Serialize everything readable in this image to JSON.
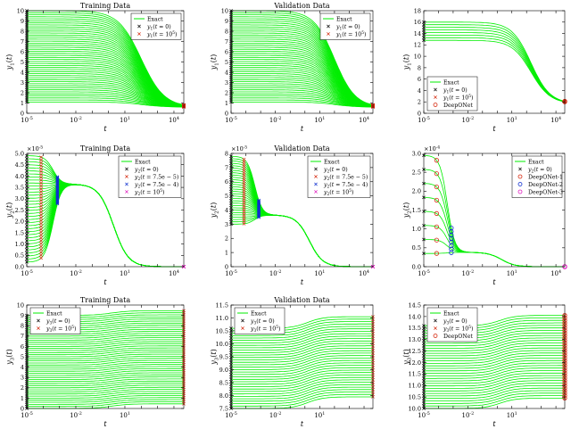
{
  "figure": {
    "background": "#ffffff",
    "curve_color": "#00ee00",
    "axis_color": "#000000"
  },
  "chart_data": [
    {
      "id": "p11",
      "type": "line",
      "title": "Training Data",
      "xlabel": "t",
      "ylabel": "y1(t)",
      "xscale": "log",
      "xlim": [
        1e-05,
        40000
      ],
      "ylim": [
        0,
        10
      ],
      "xticks": [
        {
          "v": 1e-05,
          "label": "10^-5"
        },
        {
          "v": 0.01,
          "label": "10^-2"
        },
        {
          "v": 10,
          "label": "10^1"
        },
        {
          "v": 10000,
          "label": "10^4"
        }
      ],
      "yticks": [
        0,
        1,
        2,
        3,
        4,
        5,
        6,
        7,
        8,
        9,
        10
      ],
      "ytick_decimals": 0,
      "yexp": "",
      "curves": {
        "kind": "sigmoid",
        "n": 46,
        "y0_range": [
          1.1,
          10.0
        ],
        "y_end": 0.6,
        "t_mid": 100,
        "width": 1.4
      },
      "markers": [
        {
          "at": "start",
          "style": "x",
          "color": "#000000"
        },
        {
          "at": "end",
          "style": "x",
          "color": "#d62a10"
        }
      ],
      "legend": {
        "position": "top-right",
        "entries": [
          {
            "label": "Exact",
            "style": "line",
            "color": "#00ee00"
          },
          {
            "label": "y1(t = 0)",
            "style": "x",
            "color": "#000000"
          },
          {
            "label": "y1(t = 10^5)",
            "style": "x",
            "color": "#d62a10"
          }
        ]
      }
    },
    {
      "id": "p12",
      "type": "line",
      "title": "Validation Data",
      "xlabel": "t",
      "ylabel": "y1(t)",
      "xscale": "log",
      "xlim": [
        1e-05,
        40000
      ],
      "ylim": [
        0,
        10
      ],
      "xticks": [
        {
          "v": 1e-05,
          "label": "10^-5"
        },
        {
          "v": 0.01,
          "label": "10^-2"
        },
        {
          "v": 10,
          "label": "10^1"
        },
        {
          "v": 10000,
          "label": "10^4"
        }
      ],
      "yticks": [
        0,
        1,
        2,
        3,
        4,
        5,
        6,
        7,
        8,
        9,
        10
      ],
      "ytick_decimals": 0,
      "yexp": "",
      "curves": {
        "kind": "sigmoid",
        "n": 46,
        "y0_range": [
          1.1,
          10.0
        ],
        "y_end": 0.6,
        "t_mid": 100,
        "width": 1.4
      },
      "markers": [
        {
          "at": "start",
          "style": "x",
          "color": "#000000"
        },
        {
          "at": "end",
          "style": "x",
          "color": "#d62a10"
        }
      ],
      "legend": {
        "position": "top-right",
        "entries": [
          {
            "label": "Exact",
            "style": "line",
            "color": "#00ee00"
          },
          {
            "label": "y1(t = 0)",
            "style": "x",
            "color": "#000000"
          },
          {
            "label": "y1(t = 10^5)",
            "style": "x",
            "color": "#d62a10"
          }
        ]
      }
    },
    {
      "id": "p13",
      "type": "line",
      "title": "",
      "xlabel": "t",
      "ylabel": "y1(t)",
      "xscale": "log",
      "xlim": [
        1e-05,
        40000
      ],
      "ylim": [
        0,
        18
      ],
      "xticks": [
        {
          "v": 1e-05,
          "label": "10^-5"
        },
        {
          "v": 0.01,
          "label": "10^-2"
        },
        {
          "v": 10,
          "label": "10^1"
        },
        {
          "v": 10000,
          "label": "10^4"
        }
      ],
      "yticks": [
        0,
        2,
        4,
        6,
        8,
        10,
        12,
        14,
        16,
        18
      ],
      "ytick_decimals": 0,
      "yexp": "",
      "curves": {
        "kind": "sigmoid",
        "n": 8,
        "y0_range": [
          12.8,
          16.0
        ],
        "y_end": 1.7,
        "t_mid": 200,
        "width": 1.3
      },
      "markers": [
        {
          "at": "start",
          "style": "x",
          "color": "#000000"
        },
        {
          "at": "end",
          "style": "x",
          "color": "#d62a10"
        },
        {
          "at": "end",
          "style": "o",
          "color": "#d62a10"
        }
      ],
      "legend": {
        "position": "bottom-left",
        "entries": [
          {
            "label": "Exact",
            "style": "line",
            "color": "#00ee00"
          },
          {
            "label": "y1(t = 0)",
            "style": "x",
            "color": "#000000"
          },
          {
            "label": "y1(t = 10^5)",
            "style": "x",
            "color": "#d62a10"
          },
          {
            "label": "DeepONet",
            "style": "o",
            "color": "#d62a10"
          }
        ]
      }
    },
    {
      "id": "p21",
      "type": "line",
      "title": "Training Data",
      "xlabel": "t",
      "ylabel": "y2(t)",
      "xscale": "log",
      "xlim": [
        1e-05,
        40000
      ],
      "ylim": [
        0,
        5e-05
      ],
      "xticks": [
        {
          "v": 1e-05,
          "label": "10^-5"
        },
        {
          "v": 0.01,
          "label": "10^-2"
        },
        {
          "v": 10,
          "label": "10^1"
        },
        {
          "v": 10000,
          "label": "10^4"
        }
      ],
      "yticks": [
        0,
        5e-06,
        1e-05,
        1.5e-05,
        2e-05,
        2.5e-05,
        3e-05,
        3.5e-05,
        4e-05,
        4.5e-05,
        5e-05
      ],
      "ytick_decimals": 1,
      "yexp": "-5",
      "curves": {
        "kind": "y2",
        "n": 36,
        "y0_range": [
          2e-06,
          4.9e-05
        ],
        "plateau": 3.65e-05,
        "t_conv": 0.0004,
        "t_mid": 2,
        "width": 0.9
      },
      "markers": [
        {
          "at": "start",
          "style": "x",
          "color": "#000000"
        },
        {
          "at": 7.5e-05,
          "style": "x",
          "color": "#d62a10"
        },
        {
          "at": 0.00075,
          "style": "x",
          "color": "#1030d0"
        },
        {
          "at": "end",
          "style": "x",
          "color": "#e020c0"
        }
      ],
      "legend": {
        "position": "top-right",
        "entries": [
          {
            "label": "Exact",
            "style": "line",
            "color": "#00ee00"
          },
          {
            "label": "y2(t = 0)",
            "style": "x",
            "color": "#000000"
          },
          {
            "label": "y2(t = 7.5e − 5)",
            "style": "x",
            "color": "#d62a10"
          },
          {
            "label": "y2(t = 7.5e − 4)",
            "style": "x",
            "color": "#1030d0"
          },
          {
            "label": "y2(t = 10^5)",
            "style": "x",
            "color": "#e020c0"
          }
        ]
      }
    },
    {
      "id": "p22",
      "type": "line",
      "title": "Validation Data",
      "xlabel": "t",
      "ylabel": "y2(t)",
      "xscale": "log",
      "xlim": [
        1e-05,
        40000
      ],
      "ylim": [
        0,
        8e-05
      ],
      "xticks": [
        {
          "v": 1e-05,
          "label": "10^-5"
        },
        {
          "v": 0.01,
          "label": "10^-2"
        },
        {
          "v": 10,
          "label": "10^1"
        },
        {
          "v": 10000,
          "label": "10^4"
        }
      ],
      "yticks": [
        0,
        1e-05,
        2e-05,
        3e-05,
        4e-05,
        5e-05,
        6e-05,
        7e-05,
        8e-05
      ],
      "ytick_decimals": 0,
      "yexp": "-5",
      "curves": {
        "kind": "y2",
        "n": 30,
        "y0_range": [
          3e-05,
          7.8e-05
        ],
        "plateau": 3.65e-05,
        "t_conv": 0.0004,
        "t_mid": 2,
        "width": 0.9
      },
      "markers": [
        {
          "at": "start",
          "style": "x",
          "color": "#000000"
        },
        {
          "at": 7.5e-05,
          "style": "x",
          "color": "#d62a10"
        },
        {
          "at": 0.00075,
          "style": "x",
          "color": "#1030d0"
        },
        {
          "at": "end",
          "style": "x",
          "color": "#e020c0"
        }
      ],
      "legend": {
        "position": "top-right",
        "entries": [
          {
            "label": "Exact",
            "style": "line",
            "color": "#00ee00"
          },
          {
            "label": "y2(t = 0)",
            "style": "x",
            "color": "#000000"
          },
          {
            "label": "y2(t = 7.5e − 5)",
            "style": "x",
            "color": "#d62a10"
          },
          {
            "label": "y2(t = 7.5e − 4)",
            "style": "x",
            "color": "#1030d0"
          },
          {
            "label": "y2(t = 10^5)",
            "style": "x",
            "color": "#e020c0"
          }
        ]
      }
    },
    {
      "id": "p23",
      "type": "line",
      "title": "",
      "xlabel": "t",
      "ylabel": "y2(t)",
      "xscale": "log",
      "xlim": [
        1e-05,
        40000
      ],
      "ylim": [
        0,
        0.0003
      ],
      "xticks": [
        {
          "v": 1e-05,
          "label": "10^-5"
        },
        {
          "v": 0.01,
          "label": "10^-2"
        },
        {
          "v": 10,
          "label": "10^1"
        },
        {
          "v": 10000,
          "label": "10^4"
        }
      ],
      "yticks": [
        0,
        5e-05,
        0.0001,
        0.00015,
        0.0002,
        0.00025,
        0.0003
      ],
      "ytick_decimals": 1,
      "yexp": "-4",
      "curves": {
        "kind": "y2",
        "n": 8,
        "y0_range": [
          3.5e-05,
          0.000295
        ],
        "plateau": 3.8e-05,
        "t_conv": 0.0004,
        "t_mid": 2,
        "width": 0.9
      },
      "markers": [
        {
          "at": "start",
          "style": "x",
          "color": "#000000"
        },
        {
          "at": 7.5e-05,
          "style": "o",
          "color": "#d62a10"
        },
        {
          "at": 0.00075,
          "style": "o",
          "color": "#1030d0"
        },
        {
          "at": "end",
          "style": "o",
          "color": "#e020c0"
        }
      ],
      "legend": {
        "position": "top-right",
        "entries": [
          {
            "label": "Exact",
            "style": "line",
            "color": "#00ee00"
          },
          {
            "label": "y2(t = 0)",
            "style": "x",
            "color": "#000000"
          },
          {
            "label": "DeepONet-1",
            "style": "o",
            "color": "#d62a10"
          },
          {
            "label": "DeepONet-2",
            "style": "o",
            "color": "#1030d0"
          },
          {
            "label": "DeepONet-3",
            "style": "o",
            "color": "#e020c0"
          }
        ]
      }
    },
    {
      "id": "p31",
      "type": "line",
      "title": "Training Data",
      "xlabel": "t",
      "ylabel": "y3(t)",
      "xscale": "log",
      "xlim": [
        1e-05,
        40000
      ],
      "ylim": [
        0,
        10
      ],
      "xticks": [
        {
          "v": 1e-05,
          "label": "10^-5"
        },
        {
          "v": 0.01,
          "label": "10^-2"
        },
        {
          "v": 10,
          "label": "10^1"
        }
      ],
      "yticks": [
        0,
        1,
        2,
        3,
        4,
        5,
        6,
        7,
        8,
        9,
        10
      ],
      "ytick_decimals": 0,
      "yexp": "",
      "curves": {
        "kind": "y3",
        "n": 46,
        "y0_range": [
          0.0,
          9.0
        ],
        "rise": 0.45,
        "t_mid": 1.5,
        "width": 0.9
      },
      "markers": [
        {
          "at": "start",
          "style": "x",
          "color": "#000000"
        },
        {
          "at": "end",
          "style": "x",
          "color": "#d62a10"
        }
      ],
      "legend": {
        "position": "top-left",
        "entries": [
          {
            "label": "Exact",
            "style": "line",
            "color": "#00ee00"
          },
          {
            "label": "y3(t = 0)",
            "style": "x",
            "color": "#000000"
          },
          {
            "label": "y3(t = 10^5)",
            "style": "x",
            "color": "#d62a10"
          }
        ]
      }
    },
    {
      "id": "p32",
      "type": "line",
      "title": "Validation Data",
      "xlabel": "t",
      "ylabel": "y3(t)",
      "xscale": "log",
      "xlim": [
        1e-05,
        40000
      ],
      "ylim": [
        7.5,
        11.5
      ],
      "xticks": [
        {
          "v": 1e-05,
          "label": "10^-5"
        },
        {
          "v": 0.01,
          "label": "10^-2"
        },
        {
          "v": 10,
          "label": "10^1"
        }
      ],
      "yticks": [
        7.5,
        8,
        8.5,
        9,
        9.5,
        10,
        10.5,
        11,
        11.5
      ],
      "ytick_decimals": 1,
      "yexp": "",
      "curves": {
        "kind": "y3",
        "n": 34,
        "y0_range": [
          7.5,
          10.6
        ],
        "rise": 0.45,
        "t_mid": 1.5,
        "width": 0.9
      },
      "markers": [
        {
          "at": "start",
          "style": "x",
          "color": "#000000"
        },
        {
          "at": "end",
          "style": "x",
          "color": "#d62a10"
        }
      ],
      "legend": {
        "position": "top-left",
        "entries": [
          {
            "label": "Exact",
            "style": "line",
            "color": "#00ee00"
          },
          {
            "label": "y3(t = 0)",
            "style": "x",
            "color": "#000000"
          },
          {
            "label": "y3(t = 10^5)",
            "style": "x",
            "color": "#d62a10"
          }
        ]
      }
    },
    {
      "id": "p33",
      "type": "line",
      "title": "",
      "xlabel": "t",
      "ylabel": "y3(t)",
      "xscale": "log",
      "xlim": [
        1e-05,
        40000
      ],
      "ylim": [
        10,
        14.5
      ],
      "xticks": [
        {
          "v": 1e-05,
          "label": "10^-5"
        },
        {
          "v": 0.01,
          "label": "10^-2"
        },
        {
          "v": 10,
          "label": "10^1"
        }
      ],
      "yticks": [
        10,
        10.5,
        11,
        11.5,
        12,
        12.5,
        13,
        13.5,
        14,
        14.5
      ],
      "ytick_decimals": 1,
      "yexp": "",
      "curves": {
        "kind": "y3",
        "n": 34,
        "y0_range": [
          10.0,
          13.6
        ],
        "rise": 0.45,
        "t_mid": 1.5,
        "width": 0.9
      },
      "markers": [
        {
          "at": "start",
          "style": "x",
          "color": "#000000"
        },
        {
          "at": "end",
          "style": "x",
          "color": "#d62a10"
        },
        {
          "at": "end",
          "style": "o",
          "color": "#d62a10"
        }
      ],
      "legend": {
        "position": "top-left",
        "entries": [
          {
            "label": "Exact",
            "style": "line",
            "color": "#00ee00"
          },
          {
            "label": "y3(t = 0)",
            "style": "x",
            "color": "#000000"
          },
          {
            "label": "y3(t = 10^5)",
            "style": "x",
            "color": "#d62a10"
          },
          {
            "label": "DeepONet",
            "style": "o",
            "color": "#d62a10"
          }
        ]
      }
    }
  ]
}
